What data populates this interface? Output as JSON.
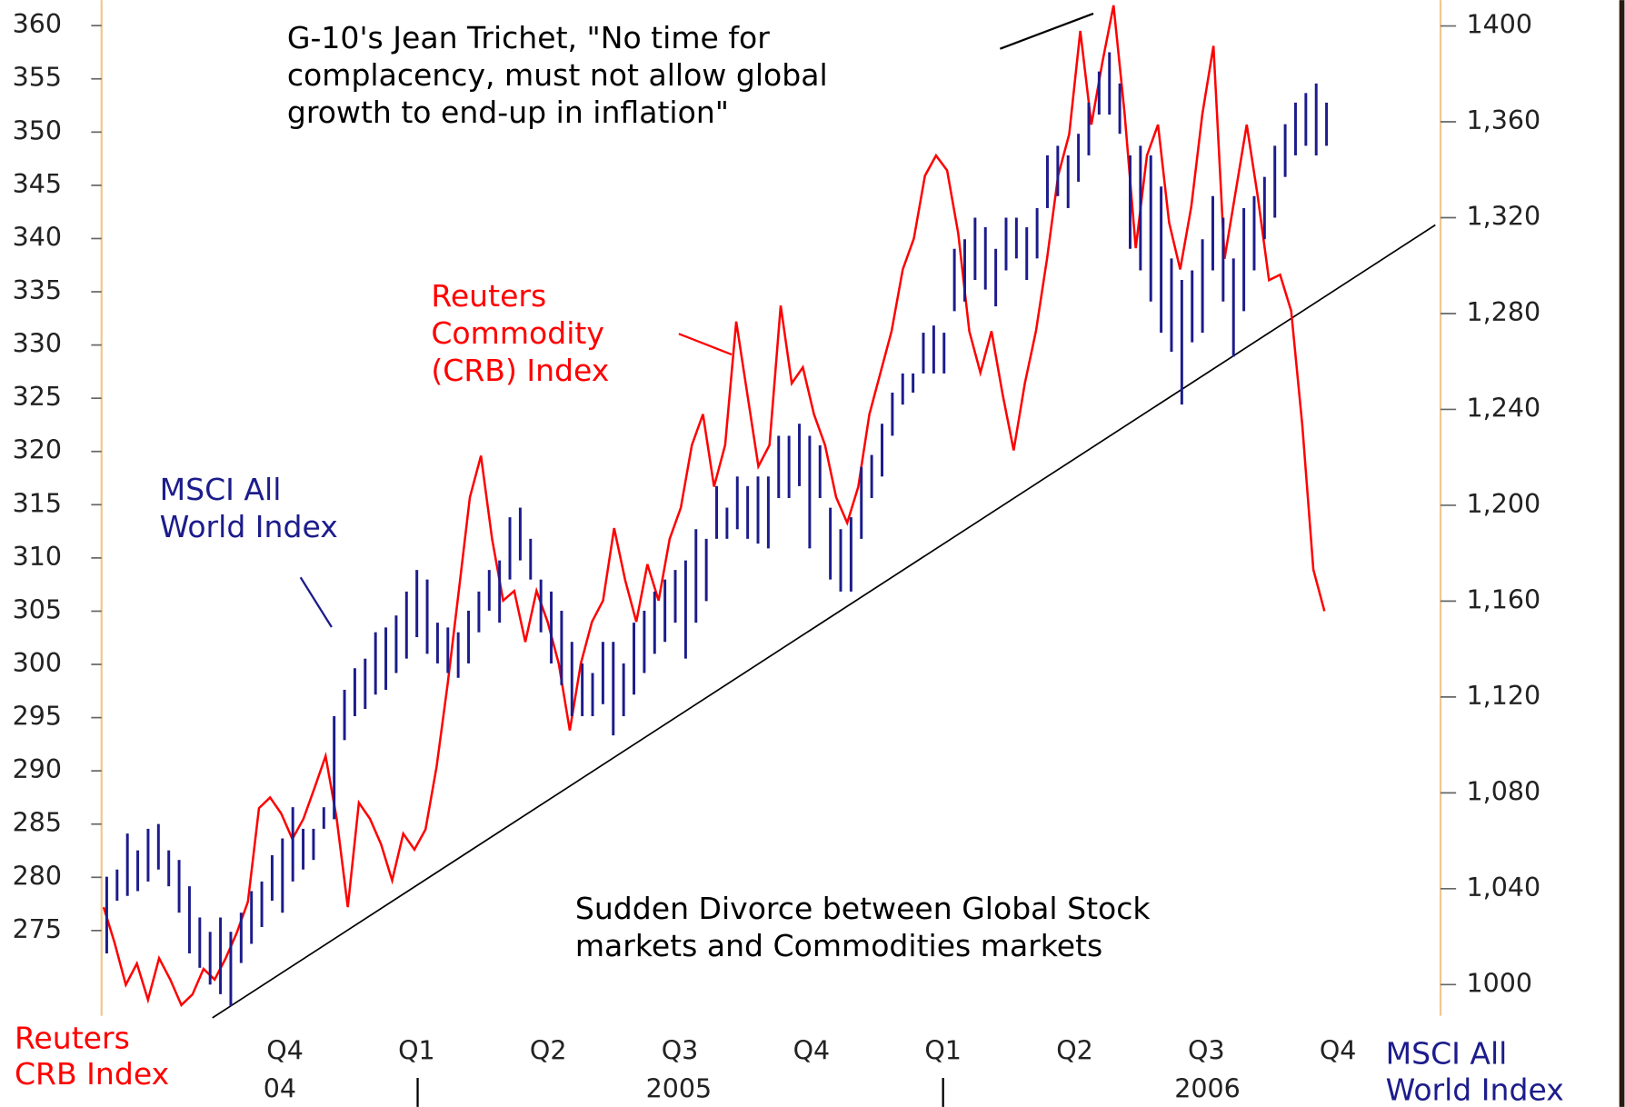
{
  "chart_data": {
    "type": "dual-axis-line-ohlc",
    "ylabel": [
      "Reuters",
      "CRB Index"
    ],
    "y2label": [
      "MSCI All",
      "World Index"
    ],
    "ylim": [
      267,
      362.4
    ],
    "yticks": [
      275,
      280,
      285,
      290,
      295,
      300,
      305,
      310,
      315,
      320,
      325,
      330,
      335,
      340,
      345,
      350,
      355,
      360
    ],
    "y2lim": [
      987,
      1410.8
    ],
    "y2ticks": [
      1000,
      {
        "value": 1040,
        "label": "1,040"
      },
      {
        "value": 1080,
        "label": "1,080"
      },
      {
        "value": 1120,
        "label": "1,120"
      },
      {
        "value": 1160,
        "label": "1,160"
      },
      {
        "value": 1200,
        "label": "1,200"
      },
      {
        "value": 1240,
        "label": "1,240"
      },
      {
        "value": 1280,
        "label": "1,280"
      },
      {
        "value": 1320,
        "label": "1,320"
      },
      {
        "value": 1360,
        "label": "1,360"
      },
      1400
    ],
    "quarters": [
      "Q4",
      "Q1",
      "Q2",
      "Q3",
      "Q4",
      "Q1",
      "Q2",
      "Q3",
      "Q4"
    ],
    "years": [
      "04",
      "2005",
      "2006"
    ],
    "series": [
      {
        "color": "#ff0000",
        "values": [
          277.2,
          273.8,
          269.9,
          271.9,
          268.5,
          272.4,
          270.4,
          268.0,
          269.0,
          271.4,
          270.4,
          272.4,
          274.8,
          277.7,
          286.5,
          287.5,
          286.0,
          283.6,
          285.5,
          288.4,
          291.4,
          285.5,
          277.2,
          287.0,
          285.5,
          283.1,
          279.7,
          284.1,
          282.6,
          284.5,
          290.4,
          298.2,
          306.9,
          315.7,
          319.6,
          311.8,
          306.0,
          306.9,
          302.1,
          306.9,
          304.0,
          300.1,
          293.8,
          300.1,
          304.0,
          306.0,
          312.8,
          307.9,
          304.0,
          309.4,
          306.0,
          311.8,
          314.7,
          320.6,
          323.5,
          316.7,
          320.6,
          332.2,
          325.4,
          318.6,
          320.6,
          333.7,
          326.4,
          327.9,
          323.5,
          320.6,
          315.7,
          313.3,
          316.7,
          323.5,
          327.4,
          331.3,
          337.1,
          340.0,
          345.9,
          347.8,
          346.4,
          340.5,
          331.3,
          327.4,
          331.3,
          325.4,
          320.1,
          326.4,
          331.3,
          338.1,
          345.9,
          349.8,
          359.5,
          350.7,
          356.6,
          361.9,
          351.7,
          339.1,
          347.8,
          350.7,
          341.5,
          337.1,
          343.0,
          351.7,
          358.1,
          338.1,
          344.4,
          350.7,
          343.9,
          336.1,
          336.6,
          333.2,
          322.5,
          308.9,
          305.0
        ]
      },
      {
        "color": "#1c1c8c",
        "axis": "y2",
        "high": [
          1045,
          1048,
          1063,
          1056,
          1065,
          1067,
          1056,
          1052,
          1041,
          1028,
          1022,
          1028,
          1022,
          1030,
          1039,
          1043,
          1054,
          1061,
          1074,
          1065,
          1065,
          1074,
          1112,
          1123,
          1132,
          1136,
          1147,
          1149,
          1154,
          1164,
          1173,
          1169,
          1151,
          1149,
          1147,
          1156,
          1164,
          1173,
          1177,
          1195,
          1199,
          1186,
          1169,
          1164,
          1156,
          1143,
          1134,
          1130,
          1143,
          1143,
          1134,
          1151,
          1156,
          1164,
          1169,
          1173,
          1177,
          1190,
          1186,
          1208,
          1199,
          1212,
          1208,
          1212,
          1212,
          1229,
          1229,
          1234,
          1229,
          1225,
          1199,
          1190,
          1195,
          1216,
          1221,
          1234,
          1247,
          1255,
          1255,
          1272,
          1275,
          1272,
          1307,
          1311,
          1320,
          1316,
          1307,
          1320,
          1320,
          1316,
          1324,
          1346,
          1350,
          1346,
          1355,
          1368,
          1381,
          1389,
          1376,
          1346,
          1350,
          1346,
          1333,
          1303,
          1294,
          1298,
          1311,
          1329,
          1320,
          1303,
          1324,
          1329,
          1337,
          1350,
          1359,
          1368,
          1372,
          1376,
          1368
        ],
        "low": [
          1013,
          1035,
          1037,
          1039,
          1043,
          1048,
          1041,
          1030,
          1013,
          1007,
          1000,
          996,
          991,
          1009,
          1017,
          1024,
          1035,
          1030,
          1043,
          1048,
          1052,
          1065,
          1069,
          1102,
          1112,
          1115,
          1121,
          1123,
          1130,
          1136,
          1145,
          1138,
          1134,
          1130,
          1128,
          1134,
          1147,
          1156,
          1151,
          1169,
          1177,
          1169,
          1147,
          1134,
          1125,
          1112,
          1112,
          1112,
          1117,
          1104,
          1112,
          1121,
          1130,
          1138,
          1143,
          1151,
          1136,
          1151,
          1160,
          1186,
          1186,
          1190,
          1186,
          1184,
          1182,
          1203,
          1203,
          1208,
          1182,
          1203,
          1169,
          1164,
          1164,
          1186,
          1203,
          1212,
          1229,
          1242,
          1247,
          1255,
          1255,
          1255,
          1281,
          1285,
          1294,
          1290,
          1283,
          1298,
          1303,
          1294,
          1303,
          1324,
          1329,
          1324,
          1335,
          1346,
          1363,
          1363,
          1355,
          1307,
          1298,
          1285,
          1272,
          1264,
          1242,
          1268,
          1272,
          1298,
          1285,
          1262,
          1281,
          1298,
          1311,
          1320,
          1337,
          1346,
          1350,
          1346,
          1350
        ]
      }
    ],
    "annotations": [
      {
        "lines": [
          "G-10's Jean Trichet, \"No time for",
          "complacency, must not allow global",
          "growth to end-up in inflation\""
        ]
      },
      {
        "lines": [
          "Reuters",
          "Commodity",
          "(CRB) Index"
        ]
      },
      {
        "lines": [
          "MSCI All",
          "World Index"
        ]
      },
      {
        "lines": [
          "Sudden Divorce between Global Stock",
          "markets and Commodities markets"
        ]
      }
    ]
  }
}
